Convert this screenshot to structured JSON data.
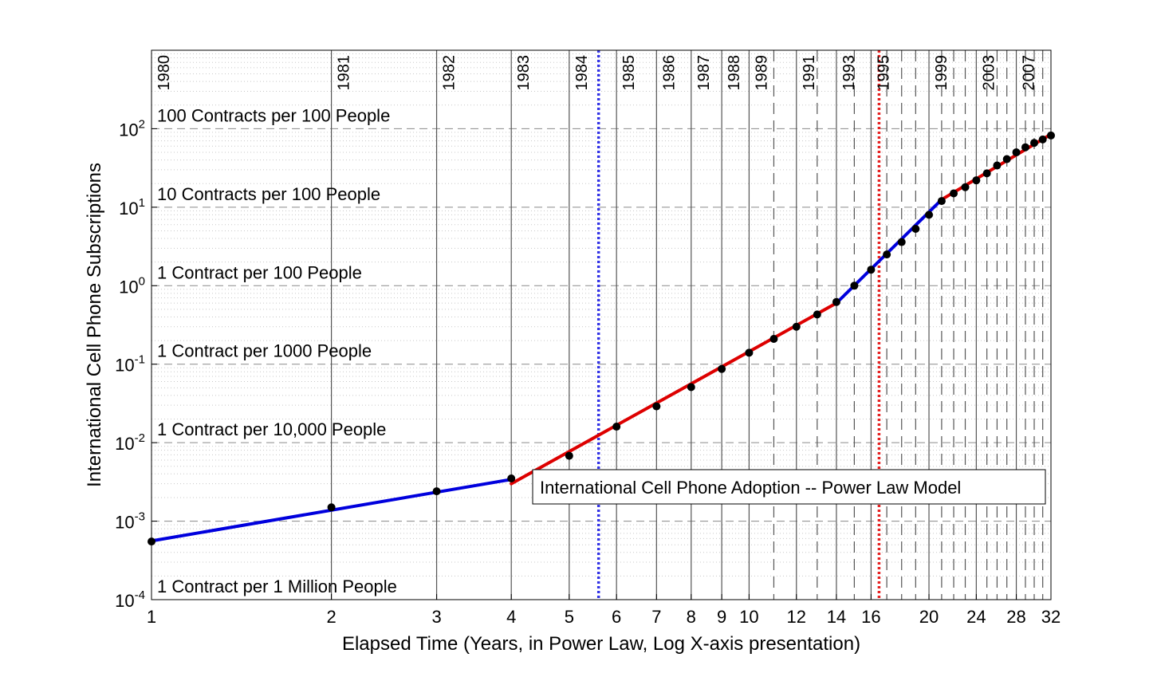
{
  "chart_data": {
    "type": "line",
    "title": "",
    "xlabel": "Elapsed Time (Years, in Power Law, Log X-axis presentation)",
    "ylabel": "International Cell Phone Subscriptions",
    "x_scale": "log",
    "y_scale": "log",
    "xlim": [
      1,
      32
    ],
    "ylim": [
      0.0001,
      1000
    ],
    "grid": true,
    "x_ticks": [
      {
        "value": 1,
        "label": "1"
      },
      {
        "value": 2,
        "label": "2"
      },
      {
        "value": 3,
        "label": "3"
      },
      {
        "value": 4,
        "label": "4"
      },
      {
        "value": 5,
        "label": "5"
      },
      {
        "value": 6,
        "label": "6"
      },
      {
        "value": 7,
        "label": "7"
      },
      {
        "value": 8,
        "label": "8"
      },
      {
        "value": 9,
        "label": "9"
      },
      {
        "value": 10,
        "label": "10"
      },
      {
        "value": 12,
        "label": "12"
      },
      {
        "value": 14,
        "label": "14"
      },
      {
        "value": 16,
        "label": "16"
      },
      {
        "value": 20,
        "label": "20"
      },
      {
        "value": 24,
        "label": "24"
      },
      {
        "value": 28,
        "label": "28"
      },
      {
        "value": 32,
        "label": "32"
      }
    ],
    "y_ticks": [
      {
        "value": 0.0001,
        "base": "10",
        "exp": "-4"
      },
      {
        "value": 0.001,
        "base": "10",
        "exp": "-3"
      },
      {
        "value": 0.01,
        "base": "10",
        "exp": "-2"
      },
      {
        "value": 0.1,
        "base": "10",
        "exp": "-1"
      },
      {
        "value": 1,
        "base": "10",
        "exp": "0"
      },
      {
        "value": 10,
        "base": "10",
        "exp": "1"
      },
      {
        "value": 100,
        "base": "10",
        "exp": "2"
      }
    ],
    "year_lines": [
      {
        "x": 1,
        "label": "1980",
        "style": "solid"
      },
      {
        "x": 2,
        "label": "1981",
        "style": "solid"
      },
      {
        "x": 3,
        "label": "1982",
        "style": "solid"
      },
      {
        "x": 4,
        "label": "1983",
        "style": "solid"
      },
      {
        "x": 5,
        "label": "1984",
        "style": "solid"
      },
      {
        "x": 6,
        "label": "1985",
        "style": "solid"
      },
      {
        "x": 7,
        "label": "1986",
        "style": "solid"
      },
      {
        "x": 8,
        "label": "1987",
        "style": "solid"
      },
      {
        "x": 9,
        "label": "1988",
        "style": "solid"
      },
      {
        "x": 10,
        "label": "1989",
        "style": "solid"
      },
      {
        "x": 11,
        "label": "",
        "style": "dashed"
      },
      {
        "x": 12,
        "label": "1991",
        "style": "solid"
      },
      {
        "x": 13,
        "label": "",
        "style": "dashed"
      },
      {
        "x": 14,
        "label": "1993",
        "style": "solid"
      },
      {
        "x": 15,
        "label": "",
        "style": "dashed"
      },
      {
        "x": 16,
        "label": "1995",
        "style": "solid"
      },
      {
        "x": 17,
        "label": "",
        "style": "dashed"
      },
      {
        "x": 18,
        "label": "",
        "style": "dashed"
      },
      {
        "x": 19,
        "label": "",
        "style": "dashed"
      },
      {
        "x": 20,
        "label": "1999",
        "style": "solid"
      },
      {
        "x": 21,
        "label": "",
        "style": "dashed"
      },
      {
        "x": 22,
        "label": "",
        "style": "dashed"
      },
      {
        "x": 23,
        "label": "",
        "style": "dashed"
      },
      {
        "x": 24,
        "label": "2003",
        "style": "solid"
      },
      {
        "x": 25,
        "label": "",
        "style": "dashed"
      },
      {
        "x": 26,
        "label": "",
        "style": "dashed"
      },
      {
        "x": 27,
        "label": "",
        "style": "dashed"
      },
      {
        "x": 28,
        "label": "2007",
        "style": "solid"
      },
      {
        "x": 29,
        "label": "",
        "style": "dashed"
      },
      {
        "x": 30,
        "label": "",
        "style": "dashed"
      },
      {
        "x": 31,
        "label": "",
        "style": "dashed"
      }
    ],
    "band_labels": [
      {
        "y": 100,
        "label": "100 Contracts per 100 People"
      },
      {
        "y": 10,
        "label": "10 Contracts per 100 People"
      },
      {
        "y": 1,
        "label": "1 Contract per 100 People"
      },
      {
        "y": 0.1,
        "label": "1 Contract per 1000 People"
      },
      {
        "y": 0.01,
        "label": "1 Contract per 10,000 People"
      },
      {
        "y": 0.0001,
        "label": "1 Contract per 1 Million People"
      }
    ],
    "vertical_markers": [
      {
        "x": 5.6,
        "color": "#3333e6"
      },
      {
        "x": 16.5,
        "color": "#e62020"
      }
    ],
    "series": [
      {
        "x": [
          1,
          2,
          3,
          4,
          5,
          6,
          7,
          8,
          9,
          10,
          11,
          12,
          13,
          14,
          15,
          16,
          17,
          18,
          19,
          20,
          21,
          22,
          23,
          24,
          25,
          26,
          27,
          28,
          29,
          30,
          31,
          32
        ],
        "y": [
          0.00055,
          0.0015,
          0.0024,
          0.0035,
          0.0068,
          0.016,
          0.029,
          0.051,
          0.087,
          0.14,
          0.21,
          0.3,
          0.43,
          0.62,
          1.0,
          1.6,
          2.5,
          3.6,
          5.3,
          8.0,
          12,
          15,
          18,
          22,
          27,
          34,
          41,
          50,
          58,
          66,
          73,
          82
        ],
        "color": "#000000"
      }
    ],
    "fit_segments": [
      {
        "color": "#0000dd",
        "x": [
          1,
          4
        ],
        "y": [
          0.00056,
          0.0034
        ]
      },
      {
        "color": "#dd0000",
        "x": [
          4,
          14
        ],
        "y": [
          0.003,
          0.6
        ]
      },
      {
        "color": "#0000dd",
        "x": [
          14,
          21
        ],
        "y": [
          0.6,
          12.5
        ]
      },
      {
        "color": "#dd0000",
        "x": [
          21,
          32
        ],
        "y": [
          12.5,
          85
        ]
      }
    ],
    "annotation": "International Cell Phone Adoption -- Power Law Model"
  }
}
